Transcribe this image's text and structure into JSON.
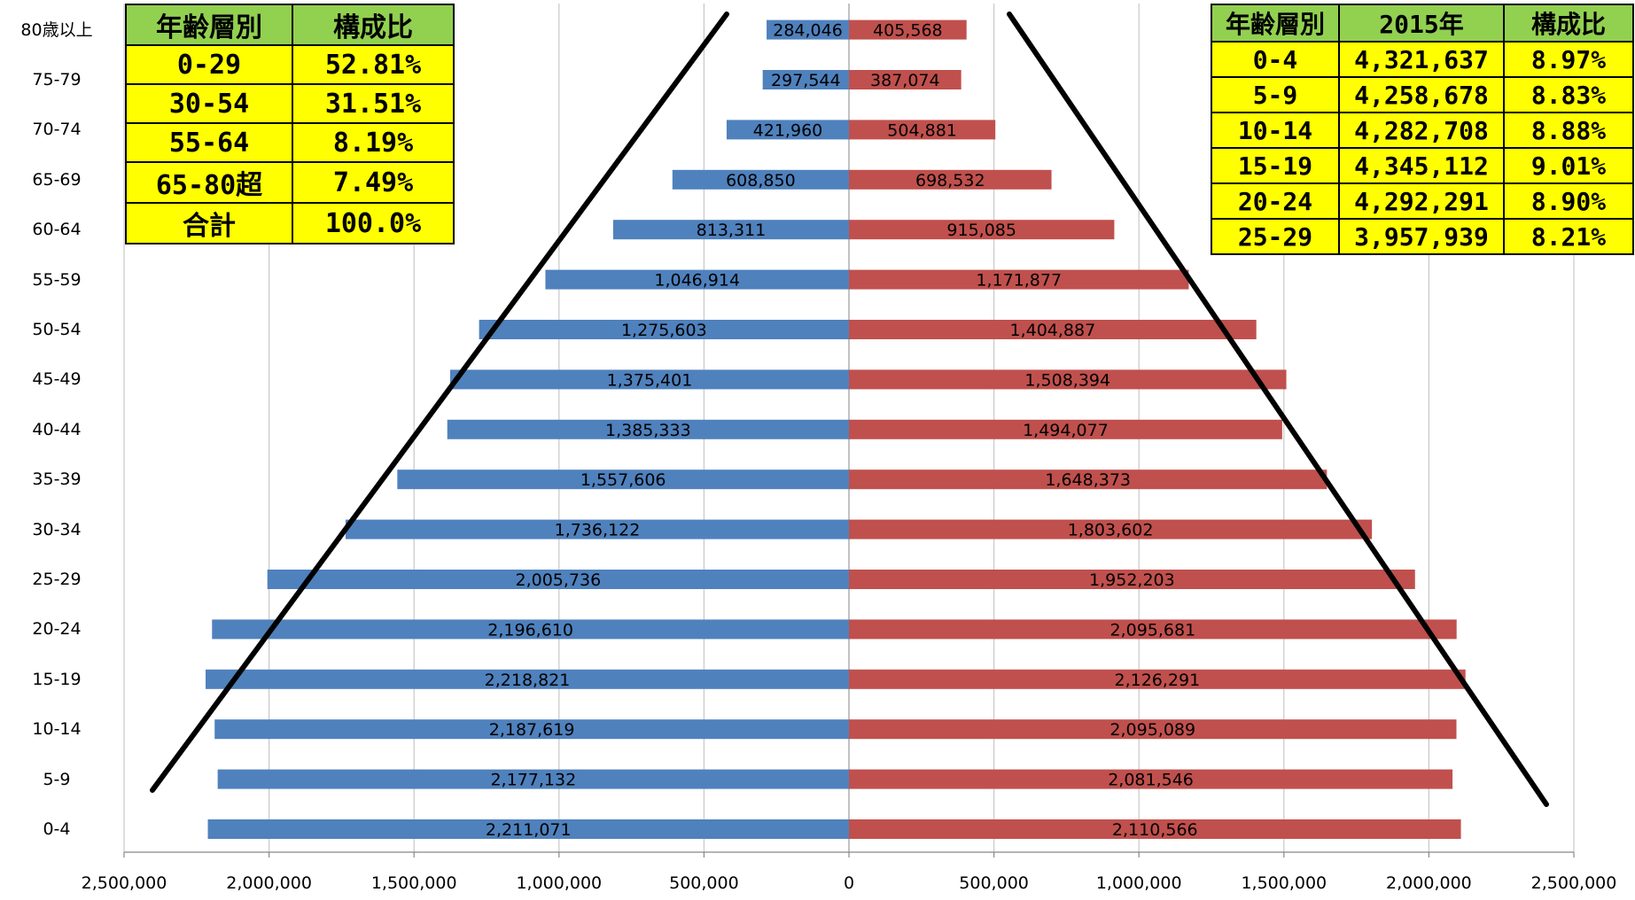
{
  "chart_data": {
    "type": "bar",
    "orientation": "horizontal-pyramid",
    "categories": [
      "0-4",
      "5-9",
      "10-14",
      "15-19",
      "20-24",
      "25-29",
      "30-34",
      "35-39",
      "40-44",
      "45-49",
      "50-54",
      "55-59",
      "60-64",
      "65-69",
      "70-74",
      "75-79",
      "80歳以上"
    ],
    "series": [
      {
        "color": "#4f81bd",
        "side": "left",
        "values": [
          2211071,
          2177132,
          2187619,
          2218821,
          2196610,
          2005736,
          1736122,
          1557606,
          1385333,
          1375401,
          1275603,
          1046914,
          813311,
          608850,
          421960,
          297544,
          284046
        ],
        "labels": [
          "2,211,071",
          "2,177,132",
          "2,187,619",
          "2,218,821",
          "2,196,610",
          "2,005,736",
          "1,736,122",
          "1,557,606",
          "1,385,333",
          "1,375,401",
          "1,275,603",
          "1,046,914",
          "813,311",
          "608,850",
          "421,960",
          "297,544",
          "284,046"
        ]
      },
      {
        "color": "#c0504d",
        "side": "right",
        "values": [
          2110566,
          2081546,
          2095089,
          2126291,
          2095681,
          1952203,
          1803602,
          1648373,
          1494077,
          1508394,
          1404887,
          1171877,
          915085,
          698532,
          504881,
          387074,
          405568
        ],
        "labels": [
          "2,110,566",
          "2,081,546",
          "2,095,089",
          "2,126,291",
          "2,095,681",
          "1,952,203",
          "1,803,602",
          "1,648,373",
          "1,494,077",
          "1,508,394",
          "1,404,887",
          "1,171,877",
          "915,085",
          "698,532",
          "504,881",
          "387,074",
          "405,568"
        ]
      }
    ],
    "xlim": [
      -2500000,
      2500000
    ],
    "xticks": [
      -2500000,
      -2000000,
      -1500000,
      -1000000,
      -500000,
      0,
      500000,
      1000000,
      1500000,
      2000000,
      2500000
    ],
    "xtick_labels": [
      "2,500,000",
      "2,000,000",
      "1,500,000",
      "1,000,000",
      "500,000",
      "0",
      "500,000",
      "1,000,000",
      "1,500,000",
      "2,000,000",
      "2,500,000"
    ],
    "grid": true,
    "legend": "none",
    "annotations": "two black diagonal lines forming a pyramid outline"
  },
  "table_left": {
    "header": [
      "年齢層別",
      "構成比"
    ],
    "rows": [
      [
        "0-29",
        "52.81%"
      ],
      [
        "30-54",
        "31.51%"
      ],
      [
        "55-64",
        "8.19%"
      ],
      [
        "65-80超",
        "7.49%"
      ],
      [
        "合計",
        "100.0%"
      ]
    ]
  },
  "table_right": {
    "header": [
      "年齢層別",
      "2015年",
      "構成比"
    ],
    "rows": [
      [
        "0-4",
        "4,321,637",
        "8.97%"
      ],
      [
        "5-9",
        "4,258,678",
        "8.83%"
      ],
      [
        "10-14",
        "4,282,708",
        "8.88%"
      ],
      [
        "15-19",
        "4,345,112",
        "9.01%"
      ],
      [
        "20-24",
        "4,292,291",
        "8.90%"
      ],
      [
        "25-29",
        "3,957,939",
        "8.21%"
      ]
    ]
  },
  "colors": {
    "male_bar": "#4f81bd",
    "female_bar": "#c0504d",
    "table_body": "#ffff00",
    "table_header": "#92d050"
  }
}
